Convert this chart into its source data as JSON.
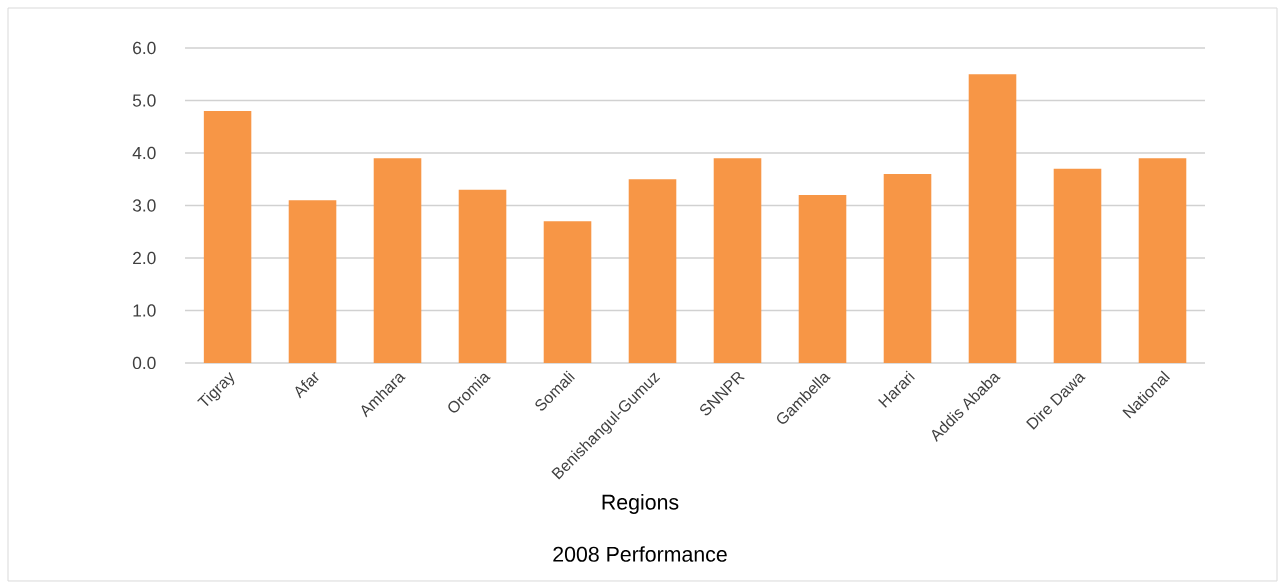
{
  "chart_data": {
    "type": "bar",
    "title": "2008 Performance",
    "xlabel": "Regions",
    "categories": [
      "Tigray",
      "Afar",
      "Amhara",
      "Oromia",
      "Somali",
      "Benishangul-Gumuz",
      "SNNPR",
      "Gambella",
      "Harari",
      "Addis Ababa",
      "Dire Dawa",
      "National"
    ],
    "values": [
      4.8,
      3.1,
      3.9,
      3.3,
      2.7,
      3.5,
      3.9,
      3.2,
      3.6,
      5.5,
      3.7,
      3.9
    ],
    "color": "#f79646",
    "ylim": [
      0,
      6
    ],
    "yticks": [
      {
        "value": 0,
        "label": "0.0"
      },
      {
        "value": 1,
        "label": "1.0"
      },
      {
        "value": 2,
        "label": "2.0"
      },
      {
        "value": 3,
        "label": "3.0"
      },
      {
        "value": 4,
        "label": "4.0"
      },
      {
        "value": 5,
        "label": "5.0"
      },
      {
        "value": 6,
        "label": "6.0"
      }
    ],
    "grid": "y"
  }
}
